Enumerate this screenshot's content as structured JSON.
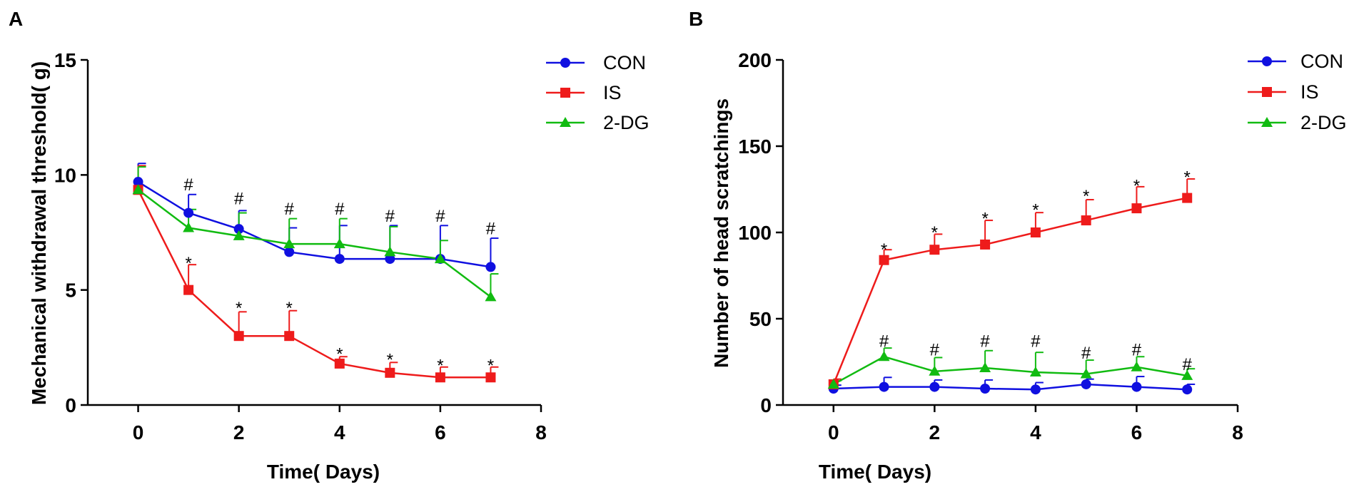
{
  "figure": {
    "panels": [
      "A",
      "B"
    ]
  },
  "chart_data": [
    {
      "type": "line",
      "panel": "A",
      "title": "",
      "xlabel": "Time( Days)",
      "ylabel": "Mechanical withdrawal threshold( g)",
      "xlim": [
        -1,
        8
      ],
      "ylim": [
        0,
        15
      ],
      "xticks": [
        0,
        2,
        4,
        6,
        8
      ],
      "yticks": [
        0,
        5,
        10,
        15
      ],
      "x": [
        0,
        1,
        2,
        3,
        4,
        5,
        6,
        7
      ],
      "grid": false,
      "legend_position": "top-right",
      "series": [
        {
          "name": "CON",
          "color": "#1010e0",
          "marker": "circle",
          "values": [
            9.7,
            8.35,
            7.65,
            6.65,
            6.35,
            6.35,
            6.35,
            6.0
          ],
          "errors": [
            0.8,
            0.8,
            0.8,
            1.05,
            1.45,
            1.45,
            1.45,
            1.25
          ]
        },
        {
          "name": "IS",
          "color": "#ee1b1b",
          "marker": "square",
          "values": [
            9.35,
            5.0,
            3.0,
            3.0,
            1.8,
            1.4,
            1.2,
            1.2
          ],
          "errors": [
            1.05,
            1.1,
            1.05,
            1.1,
            0.3,
            0.45,
            0.45,
            0.45
          ]
        },
        {
          "name": "2-DG",
          "color": "#11bb11",
          "marker": "triangle",
          "values": [
            9.35,
            7.7,
            7.35,
            7.0,
            7.0,
            6.65,
            6.35,
            4.7
          ],
          "errors": [
            1.0,
            0.8,
            1.0,
            1.1,
            1.1,
            1.1,
            0.8,
            1.0
          ]
        }
      ],
      "annotations": {
        "hash": {
          "symbol": "#",
          "x": [
            1,
            2,
            3,
            4,
            5,
            6,
            7
          ],
          "y": [
            9.6,
            9.0,
            8.55,
            8.55,
            8.25,
            8.25,
            7.7
          ]
        },
        "star": {
          "symbol": "*",
          "x": [
            1,
            2,
            3,
            4,
            5,
            6,
            7
          ],
          "y": [
            6.35,
            4.4,
            4.4,
            2.4,
            2.15,
            1.9,
            1.9
          ]
        }
      }
    },
    {
      "type": "line",
      "panel": "B",
      "title": "",
      "xlabel": "Time( Days)",
      "ylabel": "Number of head scratchings",
      "xlim": [
        -1,
        8
      ],
      "ylim": [
        0,
        200
      ],
      "xticks": [
        0,
        2,
        4,
        6,
        8
      ],
      "yticks": [
        0,
        50,
        100,
        150,
        200
      ],
      "x": [
        0,
        1,
        2,
        3,
        4,
        5,
        6,
        7
      ],
      "grid": false,
      "legend_position": "top-right",
      "series": [
        {
          "name": "CON",
          "color": "#1010e0",
          "marker": "circle",
          "values": [
            9.5,
            10.5,
            10.5,
            9.5,
            9.0,
            12.0,
            10.5,
            9.0
          ],
          "errors": [
            2.0,
            5.5,
            4.0,
            5.0,
            4.0,
            3.0,
            6.0,
            3.0
          ]
        },
        {
          "name": "IS",
          "color": "#ee1b1b",
          "marker": "square",
          "values": [
            12.0,
            84.0,
            90.0,
            93.0,
            100.0,
            107.0,
            114.0,
            120.0
          ],
          "errors": [
            3.0,
            6.0,
            9.0,
            14.0,
            11.5,
            12.0,
            12.5,
            11.0
          ]
        },
        {
          "name": "2-DG",
          "color": "#11bb11",
          "marker": "triangle",
          "values": [
            12.0,
            28.0,
            19.5,
            21.5,
            19.0,
            18.0,
            22.0,
            17.0
          ],
          "errors": [
            2.0,
            5.0,
            8.0,
            10.0,
            11.5,
            8.0,
            6.0,
            4.0
          ]
        }
      ],
      "annotations": {
        "hash": {
          "symbol": "#",
          "x": [
            1,
            2,
            3,
            4,
            5,
            6,
            7
          ],
          "y": [
            37.5,
            32.5,
            37.5,
            37.5,
            30.5,
            32.5,
            24.0
          ]
        },
        "star": {
          "symbol": "*",
          "x": [
            1,
            2,
            3,
            4,
            5,
            6,
            7
          ],
          "y": [
            92.5,
            102.5,
            110.5,
            115.5,
            123.5,
            129.5,
            134.5
          ]
        }
      }
    }
  ]
}
